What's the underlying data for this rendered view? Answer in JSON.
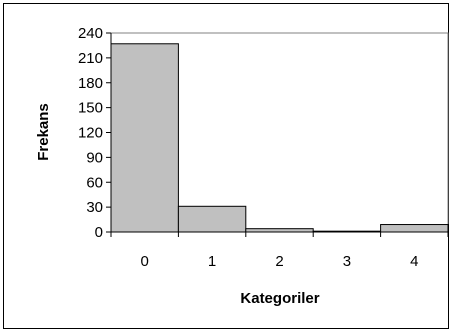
{
  "chart_data": {
    "type": "bar",
    "title": "",
    "xlabel": "Kategoriler",
    "ylabel": "Frekans",
    "categories": [
      "0",
      "1",
      "2",
      "3",
      "4"
    ],
    "values": [
      227,
      31,
      4,
      1,
      9
    ],
    "ylim": [
      0,
      240
    ],
    "yticks": [
      "0",
      "30",
      "60",
      "90",
      "120",
      "150",
      "180",
      "210",
      "240"
    ],
    "grid": false,
    "legend": "none",
    "bar_color": "#c0c0c0",
    "edge_color": "#000000"
  }
}
